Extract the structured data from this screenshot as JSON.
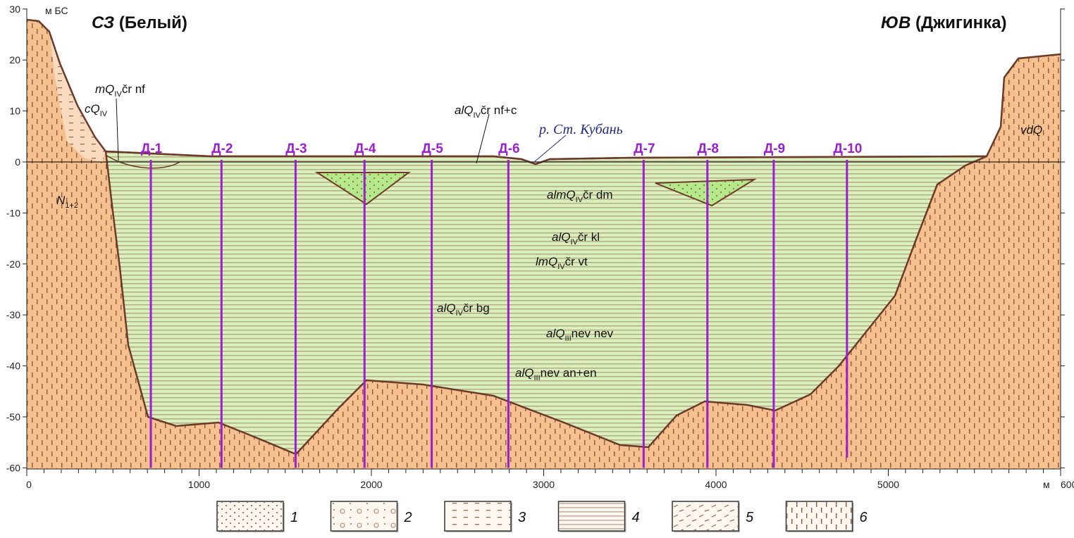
{
  "titles": {
    "left": {
      "dir": "СЗ",
      "place": "(Белый)"
    },
    "right": {
      "dir": "ЮВ",
      "place": "(Джигинка)"
    }
  },
  "axes": {
    "y_unit": "м БС",
    "x_unit": "м",
    "y_ticks": [
      "30",
      "20",
      "10",
      "0",
      "-10",
      "-20",
      "-30",
      "-40",
      "-50",
      "-60"
    ],
    "x_ticks": [
      "0",
      "1000",
      "2000",
      "3000",
      "4000",
      "5000",
      "6000"
    ],
    "y_range": [
      -60,
      30
    ],
    "x_range": [
      0,
      6000
    ]
  },
  "river": "р. Ст. Кубань",
  "boreholes": [
    {
      "label": "Д-1",
      "x_m": 720,
      "bottom_m": -60
    },
    {
      "label": "Д-2",
      "x_m": 1130,
      "bottom_m": -60
    },
    {
      "label": "Д-3",
      "x_m": 1560,
      "bottom_m": -60
    },
    {
      "label": "Д-4",
      "x_m": 1960,
      "bottom_m": -60
    },
    {
      "label": "Д-5",
      "x_m": 2350,
      "bottom_m": -60
    },
    {
      "label": "Д-6",
      "x_m": 2795,
      "bottom_m": -60
    },
    {
      "label": "Д-7",
      "x_m": 3580,
      "bottom_m": -60
    },
    {
      "label": "Д-8",
      "x_m": 3950,
      "bottom_m": -60
    },
    {
      "label": "Д-9",
      "x_m": 4335,
      "bottom_m": -60
    },
    {
      "label": "Д-10",
      "x_m": 4760,
      "bottom_m": -58
    }
  ],
  "units": {
    "cQ": {
      "pre": "c",
      "main": "Q",
      "sub": "IV",
      "post": ""
    },
    "mnf": {
      "pre": "m",
      "main": "Q",
      "sub": "IV",
      "post": "čr nf"
    },
    "nfc": {
      "pre": "al",
      "main": "Q",
      "sub": "IV",
      "post": "čr nf+c"
    },
    "dm": {
      "pre": "alm",
      "main": "Q",
      "sub": "IV",
      "post": "čr dm"
    },
    "kl": {
      "pre": "al",
      "main": "Q",
      "sub": "IV",
      "post": "čr kl"
    },
    "vt": {
      "pre": "lm",
      "main": "Q",
      "sub": "IV",
      "post": "čr vt"
    },
    "bg": {
      "pre": "al",
      "main": "Q",
      "sub": "IV",
      "post": "čr bg"
    },
    "nev": {
      "pre": "al",
      "main": "Q",
      "sub": "III",
      "post": "nev nev"
    },
    "anen": {
      "pre": "al",
      "main": "Q",
      "sub": "III",
      "post": "nev an+en"
    },
    "N": {
      "pre": "",
      "main": "N",
      "sub": "1+2",
      "post": ""
    },
    "vdQ": {
      "pre": "vd",
      "main": "Q",
      "sub": "",
      "post": ""
    }
  },
  "colors": {
    "bedrock": "#f6c08e",
    "colluvium": "#f9dcc0",
    "nfc": "#d9efbc",
    "lens": "#b5ea8a",
    "dm": "#a6ecef",
    "kl": "#1fe3ea",
    "vt": "#2fbcd9",
    "bg": "#6f93e3",
    "nev": "#c7bdea",
    "anen": "#9b9be8",
    "boundary": "#6b3a2a",
    "borehole": "#9b1fd0"
  },
  "legend": [
    {
      "num": "1",
      "pattern": "dots"
    },
    {
      "num": "2",
      "pattern": "gravel"
    },
    {
      "num": "3",
      "pattern": "dashes"
    },
    {
      "num": "4",
      "pattern": "horizontal-lines"
    },
    {
      "num": "5",
      "pattern": "oblique-dashes"
    },
    {
      "num": "6",
      "pattern": "vertical-dashes"
    }
  ]
}
